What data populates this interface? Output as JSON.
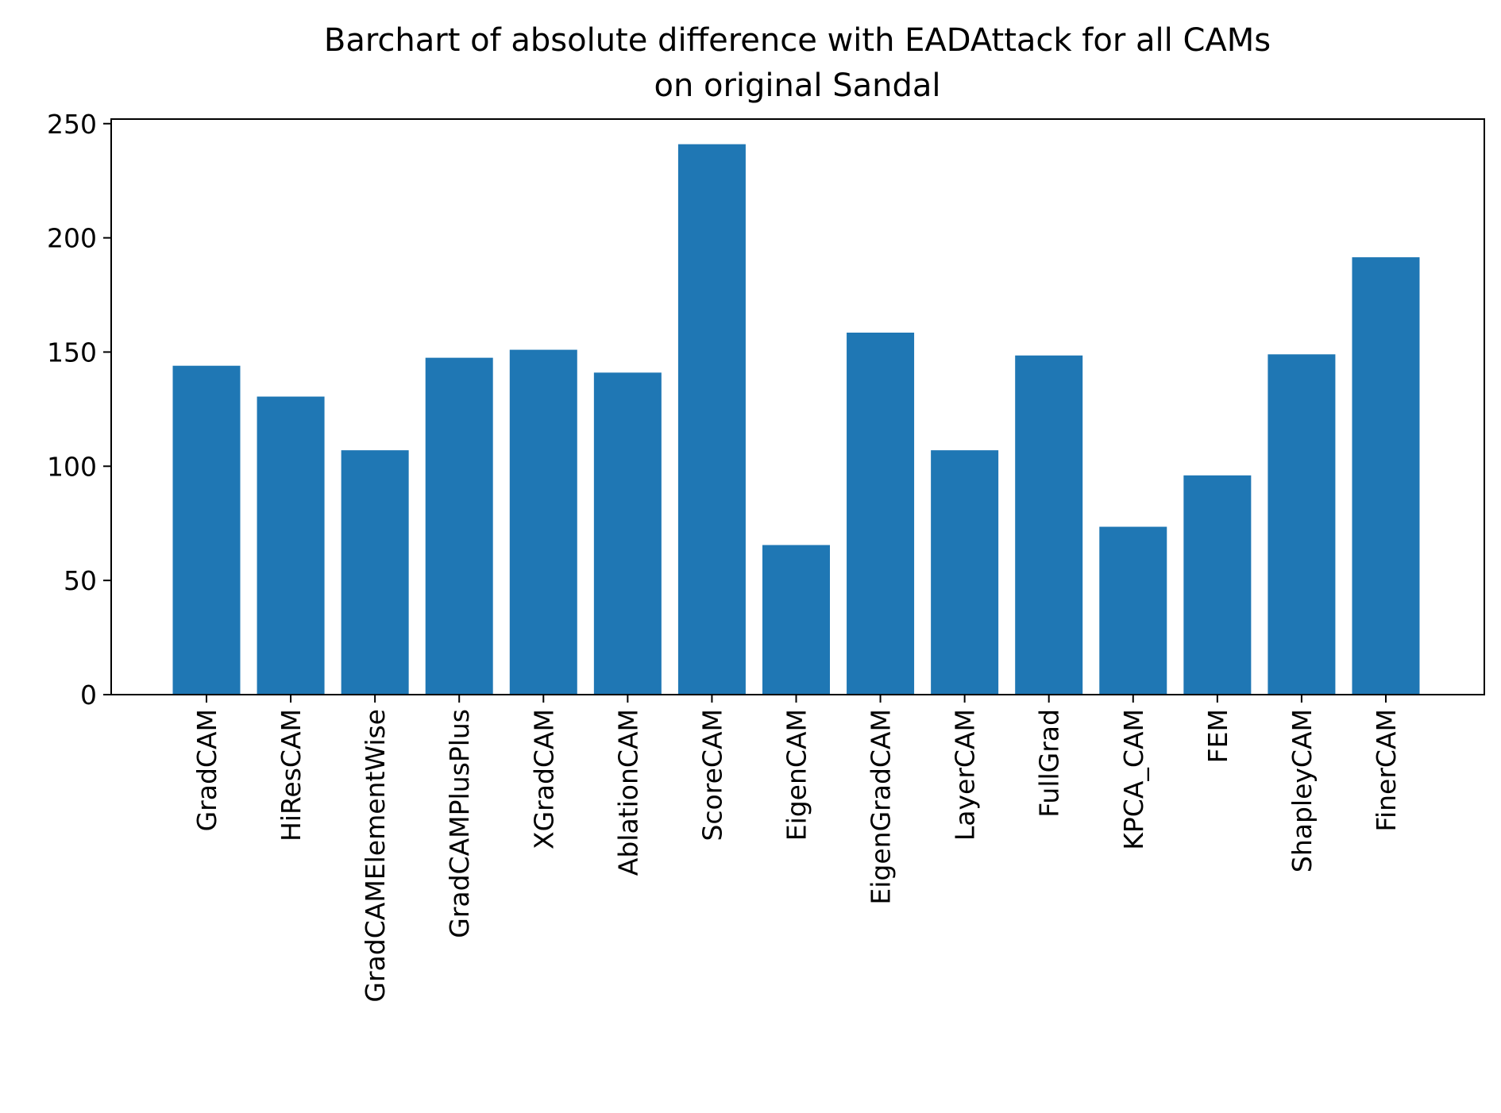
{
  "chart_data": {
    "type": "bar",
    "title": "Barchart of absolute difference with EADAttack for all CAMs",
    "subtitle": "on original Sandal",
    "xlabel": "",
    "ylabel": "",
    "ylim": [
      0,
      252
    ],
    "yticks": [
      0,
      50,
      100,
      150,
      200,
      250
    ],
    "bar_color": "#1f77b4",
    "grid": false,
    "categories": [
      "GradCAM",
      "HiResCAM",
      "GradCAMElementWise",
      "GradCAMPlusPlus",
      "XGradCAM",
      "AblationCAM",
      "ScoreCAM",
      "EigenCAM",
      "EigenGradCAM",
      "LayerCAM",
      "FullGrad",
      "KPCA_CAM",
      "FEM",
      "ShapleyCAM",
      "FinerCAM"
    ],
    "values": [
      144,
      130.5,
      107,
      147.5,
      151,
      141,
      241,
      65.5,
      158.5,
      107,
      148.5,
      73.5,
      96,
      149,
      191.5
    ]
  }
}
